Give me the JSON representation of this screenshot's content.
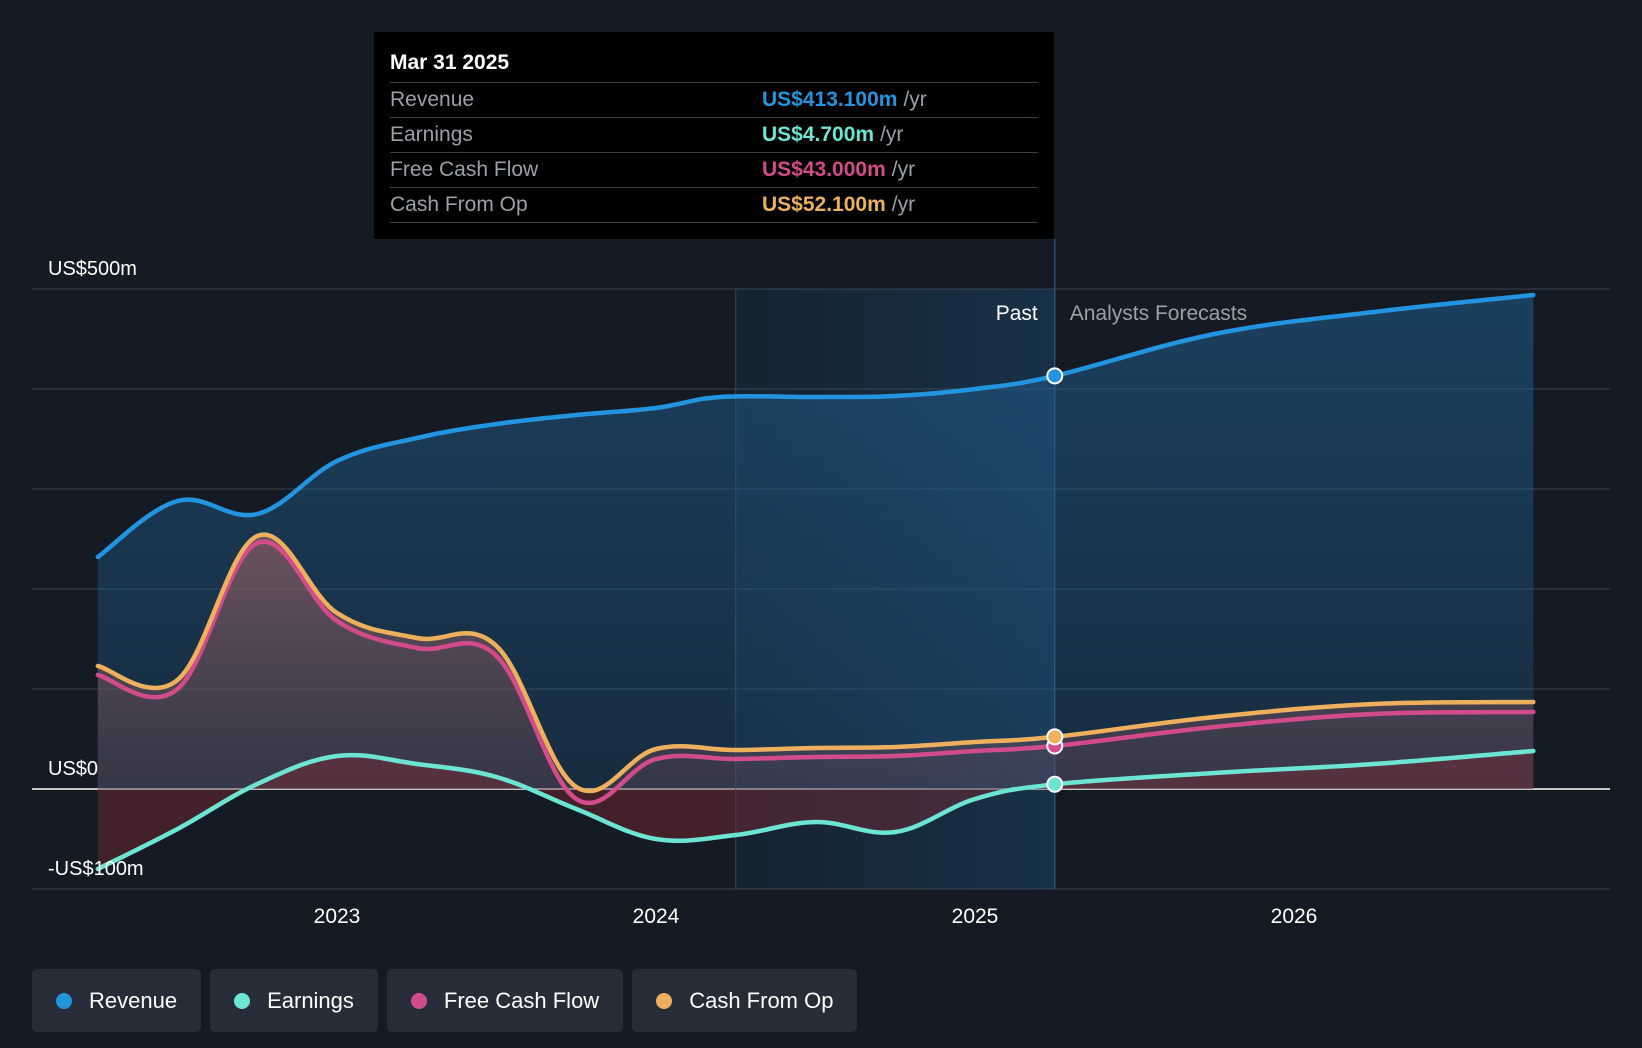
{
  "chart_data": {
    "type": "area",
    "y_unit_prefix": "US$",
    "ylim": [
      -100,
      500
    ],
    "y_ticks": [
      {
        "value": 500,
        "label": "US$500m"
      },
      {
        "value": 0,
        "label": "US$0"
      },
      {
        "value": -100,
        "label": "-US$100m"
      }
    ],
    "x_ticks": [
      "2023",
      "2024",
      "2025",
      "2026"
    ],
    "divider_labels": {
      "past": "Past",
      "forecast": "Analysts Forecasts"
    },
    "series": [
      {
        "name": "Revenue",
        "color": "#2394df",
        "points": [
          [
            2022.25,
            232
          ],
          [
            2022.5,
            288
          ],
          [
            2022.75,
            275
          ],
          [
            2023.0,
            328
          ],
          [
            2023.25,
            351
          ],
          [
            2023.5,
            365
          ],
          [
            2023.75,
            374
          ],
          [
            2024.0,
            381
          ],
          [
            2024.2,
            392
          ],
          [
            2024.5,
            392
          ],
          [
            2024.75,
            393
          ],
          [
            2025.0,
            400
          ],
          [
            2025.25,
            413.1
          ],
          [
            2025.75,
            455
          ],
          [
            2026.25,
            477
          ],
          [
            2026.75,
            494
          ]
        ]
      },
      {
        "name": "Earnings",
        "color": "#6ce5d3",
        "points": [
          [
            2022.25,
            -80
          ],
          [
            2022.5,
            -40
          ],
          [
            2022.75,
            5
          ],
          [
            2023.0,
            33
          ],
          [
            2023.25,
            25
          ],
          [
            2023.5,
            12
          ],
          [
            2023.75,
            -20
          ],
          [
            2024.0,
            -50
          ],
          [
            2024.25,
            -46
          ],
          [
            2024.5,
            -33
          ],
          [
            2024.75,
            -43
          ],
          [
            2025.0,
            -10
          ],
          [
            2025.25,
            4.7
          ],
          [
            2025.75,
            16
          ],
          [
            2026.25,
            25
          ],
          [
            2026.75,
            38
          ]
        ]
      },
      {
        "name": "Free Cash Flow",
        "color": "#d24b8a",
        "points": [
          [
            2022.25,
            114
          ],
          [
            2022.5,
            100
          ],
          [
            2022.75,
            246
          ],
          [
            2023.0,
            168
          ],
          [
            2023.25,
            141
          ],
          [
            2023.5,
            133
          ],
          [
            2023.75,
            -10
          ],
          [
            2024.0,
            30
          ],
          [
            2024.25,
            30
          ],
          [
            2024.5,
            32
          ],
          [
            2024.75,
            33
          ],
          [
            2025.0,
            38
          ],
          [
            2025.25,
            43
          ],
          [
            2025.75,
            62
          ],
          [
            2026.25,
            75
          ],
          [
            2026.75,
            77
          ]
        ]
      },
      {
        "name": "Cash From Op",
        "color": "#edb05c",
        "points": [
          [
            2022.25,
            123
          ],
          [
            2022.5,
            109
          ],
          [
            2022.75,
            253
          ],
          [
            2023.0,
            176
          ],
          [
            2023.25,
            151
          ],
          [
            2023.5,
            143
          ],
          [
            2023.75,
            2
          ],
          [
            2024.0,
            40
          ],
          [
            2024.25,
            39
          ],
          [
            2024.5,
            41
          ],
          [
            2024.75,
            42
          ],
          [
            2025.0,
            47
          ],
          [
            2025.25,
            52.1
          ],
          [
            2025.75,
            72
          ],
          [
            2026.25,
            85
          ],
          [
            2026.75,
            87
          ]
        ]
      }
    ]
  },
  "tooltip": {
    "date": "Mar 31 2025",
    "rows": [
      {
        "label": "Revenue",
        "value": "US$413.100m",
        "unit": "/yr",
        "color": "#2394df"
      },
      {
        "label": "Earnings",
        "value": "US$4.700m",
        "unit": "/yr",
        "color": "#6ce5d3"
      },
      {
        "label": "Free Cash Flow",
        "value": "US$43.000m",
        "unit": "/yr",
        "color": "#d24b8a"
      },
      {
        "label": "Cash From Op",
        "value": "US$52.100m",
        "unit": "/yr",
        "color": "#edb05c"
      }
    ]
  },
  "legend": [
    {
      "label": "Revenue",
      "color": "#2394df"
    },
    {
      "label": "Earnings",
      "color": "#6ce5d3"
    },
    {
      "label": "Free Cash Flow",
      "color": "#d24b8a"
    },
    {
      "label": "Cash From Op",
      "color": "#edb05c"
    }
  ]
}
